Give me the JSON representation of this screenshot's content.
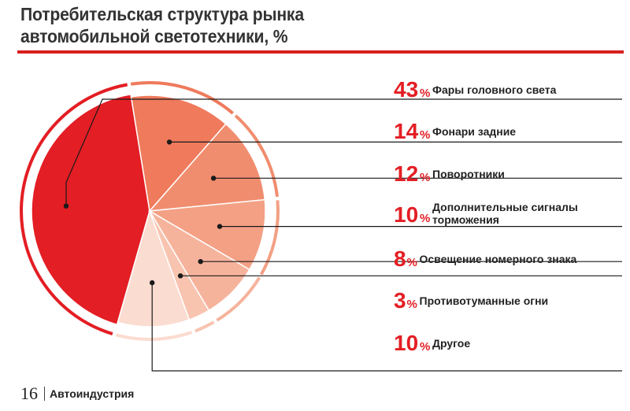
{
  "title_line1": "Потребительская структура рынка",
  "title_line2": "автомобильной светотехники, %",
  "footer": {
    "page_number": "16",
    "section": "Автоиндустрия"
  },
  "colors": {
    "accent": "#e31e24",
    "rule": "#d6201f",
    "leader": "#1a1a1a"
  },
  "chart_data": {
    "type": "pie",
    "title": "Потребительская структура рынка автомобильной светотехники, %",
    "value_suffix": "%",
    "slices": [
      {
        "value": 43,
        "label": "Фары головного света",
        "color": "#e31e24"
      },
      {
        "value": 14,
        "label": "Фонари задние",
        "color": "#ef7a5c"
      },
      {
        "value": 12,
        "label": "Поворотники",
        "color": "#f18d6f"
      },
      {
        "value": 10,
        "label": "Дополнительные сигналы торможения",
        "color": "#f3a084"
      },
      {
        "value": 8,
        "label": "Освещение номерного знака",
        "color": "#f6b39c"
      },
      {
        "value": 3,
        "label": "Противотуманные огни",
        "color": "#f8c4b0"
      },
      {
        "value": 10,
        "label": "Другое",
        "color": "#fbdcd0"
      }
    ]
  }
}
